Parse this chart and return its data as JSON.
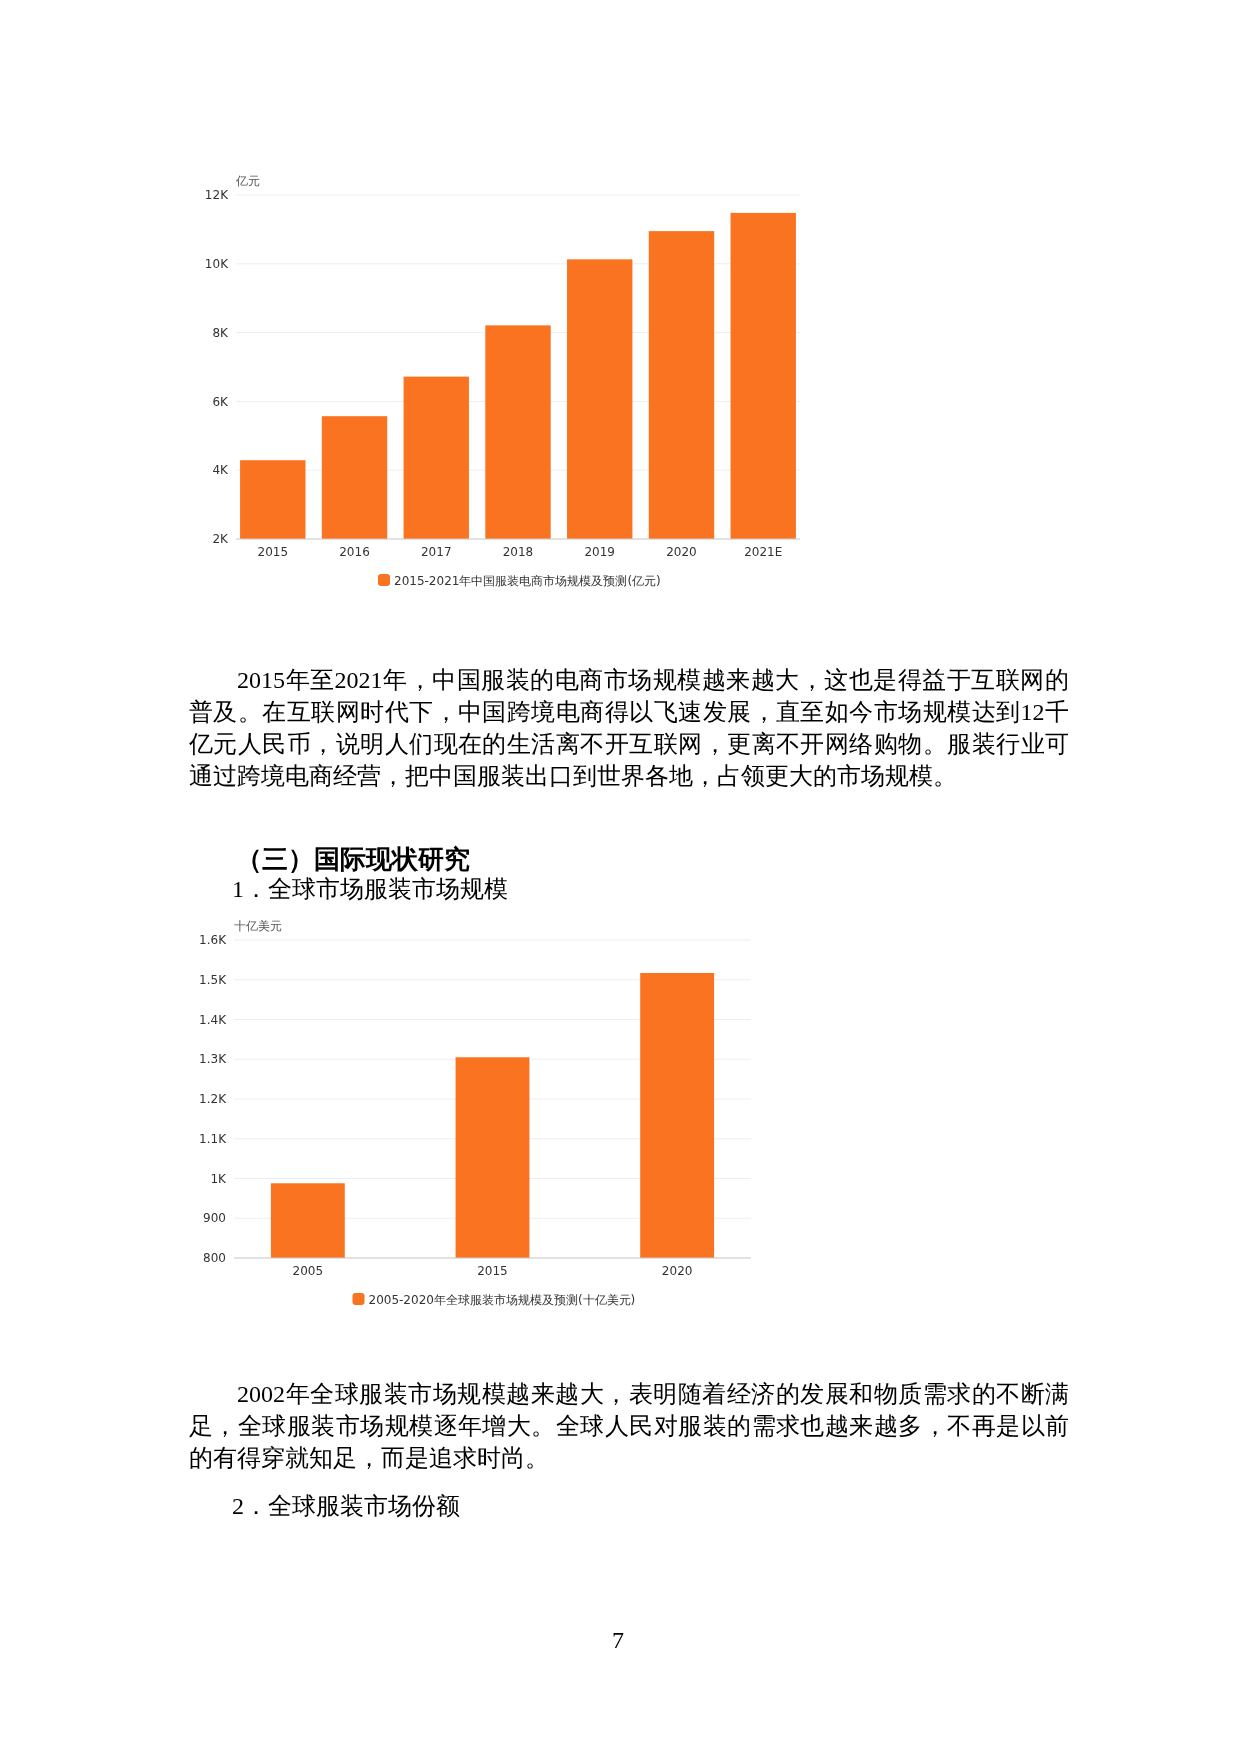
{
  "chart_data": [
    {
      "type": "bar",
      "ylabel": "亿元",
      "categories": [
        "2015",
        "2016",
        "2017",
        "2018",
        "2019",
        "2020",
        "2021E"
      ],
      "series": [
        {
          "name": "2015-2021年中国服装电商市场规模及预测(亿元)",
          "color": "#fa7320",
          "values": [
            4290,
            5570,
            6720,
            8210,
            10130,
            10950,
            11480
          ]
        }
      ],
      "ylim": [
        2000,
        12000
      ],
      "yticks": [
        {
          "value": 2000,
          "label": "2K"
        },
        {
          "value": 4000,
          "label": "4K"
        },
        {
          "value": 6000,
          "label": "6K"
        },
        {
          "value": 8000,
          "label": "8K"
        },
        {
          "value": 10000,
          "label": "10K"
        },
        {
          "value": 12000,
          "label": "12K"
        }
      ],
      "grid": "y",
      "legend": "bottom",
      "annotations": [
        "2015年至2021年，中国服装的电商市场规模越来越大，这也是得益于互联网的普及。在互联网时代下，中国跨境电商得以飞速发展，直至如今市场规模达到12千亿元人民币，说明人们现在的生活离不开互联网，更离不开网络购物。服装行业可通过跨境电商经营，把中国服装出口到世界各地，占领更大的市场规模。"
      ]
    },
    {
      "type": "bar",
      "title": "（三）国际现状研究",
      "subtitle": "1．全球市场服装市场规模",
      "ylabel": "十亿美元",
      "categories": [
        "2005",
        "2015",
        "2020"
      ],
      "series": [
        {
          "name": "2005-2020年全球服装市场规模及预测(十亿美元)",
          "color": "#fa7320",
          "values": [
            988,
            1305,
            1517
          ]
        }
      ],
      "ylim": [
        800,
        1600
      ],
      "yticks": [
        800,
        900,
        {
          "value": 1000,
          "label": "1K"
        },
        {
          "value": 1100,
          "label": "1.1K"
        },
        {
          "value": 1200,
          "label": "1.2K"
        },
        {
          "value": 1300,
          "label": "1.3K"
        },
        {
          "value": 1400,
          "label": "1.4K"
        },
        {
          "value": 1500,
          "label": "1.5K"
        },
        {
          "value": 1600,
          "label": "1.6K"
        }
      ],
      "grid": "y",
      "legend": "bottom",
      "annotations": [
        "2002年全球服装市场规模越来越大，表明随着经济的发展和物质需求的不断满足，全球服装市场规模逐年增大。全球人民对服装的需求也越来越多，不再是以前的有得穿就知足，而是追求时尚。",
        "2．全球服装市场份额",
        "7"
      ]
    }
  ]
}
